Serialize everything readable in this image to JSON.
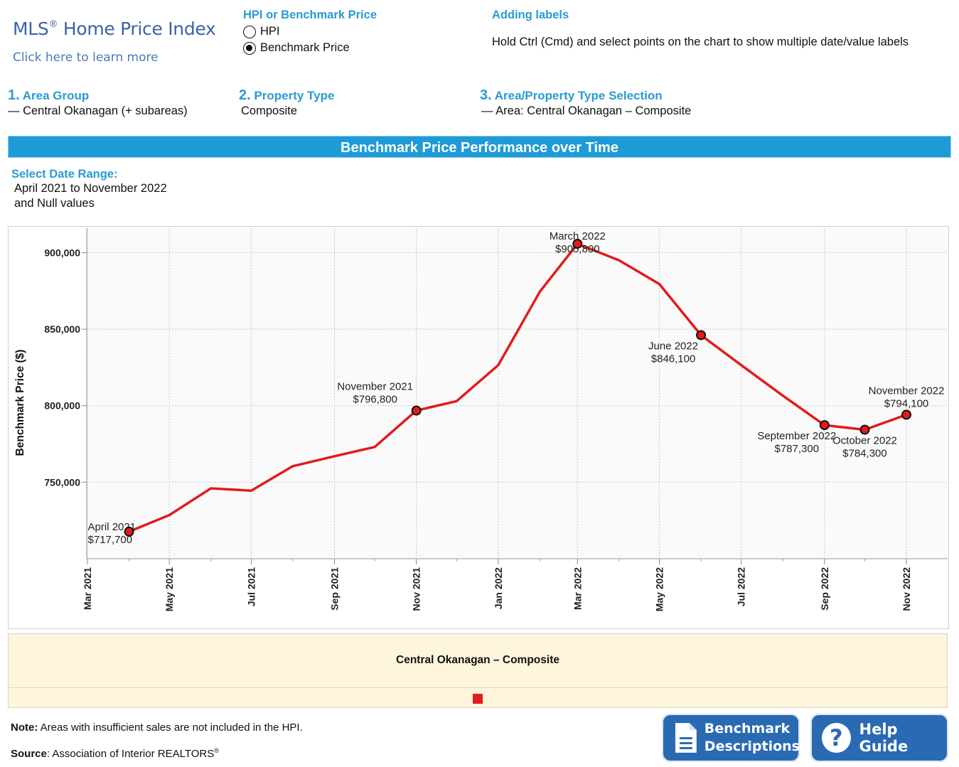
{
  "header": {
    "logo_title": "MLS",
    "logo_reg": "®",
    "logo_title_rest": " Home Price Index",
    "logo_link": "Click here to learn more",
    "measure_heading": "HPI or Benchmark Price",
    "measure_options": [
      {
        "label": "HPI",
        "selected": false
      },
      {
        "label": "Benchmark Price",
        "selected": true
      }
    ],
    "labels_heading": "Adding labels",
    "labels_help": "Hold Ctrl (Cmd) and select points on the chart to show multiple date/value labels"
  },
  "steps": [
    {
      "num": "1.",
      "title": "Area Group",
      "value": "— Central Okanagan (+ subareas)"
    },
    {
      "num": "2.",
      "title": "Property Type",
      "value": "Composite"
    },
    {
      "num": "3.",
      "title": "Area/Property Type Selection",
      "value": "— Area: Central Okanagan – Composite"
    }
  ],
  "banner": "Benchmark Price Performance over Time",
  "date_range": {
    "heading": "Select Date Range:",
    "line1": "April 2021 to November 2022",
    "line2": "and Null values"
  },
  "legend": {
    "title": "Central Okanagan – Composite",
    "swatch_color": "#e31b1b"
  },
  "footer": {
    "note_bold": "Note:",
    "note_text": " Areas with insufficient sales are not included in the HPI.",
    "source_bold": "Source",
    "source_text": ": Association of Interior REALTORS",
    "source_reg": "®"
  },
  "buttons": {
    "benchmark_line1": "Benchmark",
    "benchmark_line2": "Descriptions",
    "help": "Help Guide",
    "help_glyph": "?"
  },
  "chart_data": {
    "type": "line",
    "title": "Benchmark Price Performance over Time",
    "ylabel": "Benchmark Price ($)",
    "xlabel": "",
    "ylim": [
      700000,
      916000
    ],
    "grid": true,
    "line_color": "#e31b1b",
    "y_ticks": [
      {
        "value": 750000,
        "label": "750,000"
      },
      {
        "value": 800000,
        "label": "800,000"
      },
      {
        "value": 850000,
        "label": "850,000"
      },
      {
        "value": 900000,
        "label": "900,000"
      }
    ],
    "x_ticks": [
      {
        "date": "2021-03-01",
        "label": "Mar 2021"
      },
      {
        "date": "2021-05-01",
        "label": "May 2021"
      },
      {
        "date": "2021-07-01",
        "label": "Jul 2021"
      },
      {
        "date": "2021-09-01",
        "label": "Sep 2021"
      },
      {
        "date": "2021-11-01",
        "label": "Nov 2021"
      },
      {
        "date": "2022-01-01",
        "label": "Jan 2022"
      },
      {
        "date": "2022-03-01",
        "label": "Mar 2022"
      },
      {
        "date": "2022-05-01",
        "label": "May 2022"
      },
      {
        "date": "2022-07-01",
        "label": "Jul 2022"
      },
      {
        "date": "2022-09-01",
        "label": "Sep 2022"
      },
      {
        "date": "2022-11-01",
        "label": "Nov 2022"
      }
    ],
    "minor_x_ticks": [
      "2021-04-01",
      "2021-06-01",
      "2021-08-01",
      "2021-10-01",
      "2021-12-01",
      "2022-02-01",
      "2022-04-01",
      "2022-06-01",
      "2022-08-01",
      "2022-10-01"
    ],
    "series": [
      {
        "name": "Central Okanagan – Composite",
        "points": [
          {
            "date": "2021-04-01",
            "value": 717700
          },
          {
            "date": "2021-05-01",
            "value": 728500
          },
          {
            "date": "2021-06-01",
            "value": 746000
          },
          {
            "date": "2021-07-01",
            "value": 744500
          },
          {
            "date": "2021-08-01",
            "value": 760500
          },
          {
            "date": "2021-09-01",
            "value": 767000
          },
          {
            "date": "2021-10-01",
            "value": 773000
          },
          {
            "date": "2021-11-01",
            "value": 796800
          },
          {
            "date": "2021-12-01",
            "value": 803000
          },
          {
            "date": "2022-01-01",
            "value": 826500
          },
          {
            "date": "2022-02-01",
            "value": 874500
          },
          {
            "date": "2022-03-01",
            "value": 905800
          },
          {
            "date": "2022-04-01",
            "value": 895000
          },
          {
            "date": "2022-05-01",
            "value": 879500
          },
          {
            "date": "2022-06-01",
            "value": 846100
          },
          {
            "date": "2022-07-01",
            "value": 826500
          },
          {
            "date": "2022-08-01",
            "value": 806500
          },
          {
            "date": "2022-09-01",
            "value": 787300
          },
          {
            "date": "2022-10-01",
            "value": 784300
          },
          {
            "date": "2022-11-01",
            "value": 794100
          }
        ]
      }
    ],
    "annotations": [
      {
        "date": "2021-04-01",
        "label_date": "April 2021",
        "label_value": "$717,700",
        "anchor": "left"
      },
      {
        "date": "2021-11-01",
        "label_date": "November 2021",
        "label_value": "$796,800",
        "anchor": "above-left"
      },
      {
        "date": "2022-03-01",
        "label_date": "March 2022",
        "label_value": "$905,800",
        "anchor": "above"
      },
      {
        "date": "2022-06-01",
        "label_date": "June 2022",
        "label_value": "$846,100",
        "anchor": "below-left"
      },
      {
        "date": "2022-09-01",
        "label_date": "September 2022",
        "label_value": "$787,300",
        "anchor": "below-left"
      },
      {
        "date": "2022-10-01",
        "label_date": "October 2022",
        "label_value": "$784,300",
        "anchor": "below"
      },
      {
        "date": "2022-11-01",
        "label_date": "November 2022",
        "label_value": "$794,100",
        "anchor": "above"
      }
    ]
  }
}
